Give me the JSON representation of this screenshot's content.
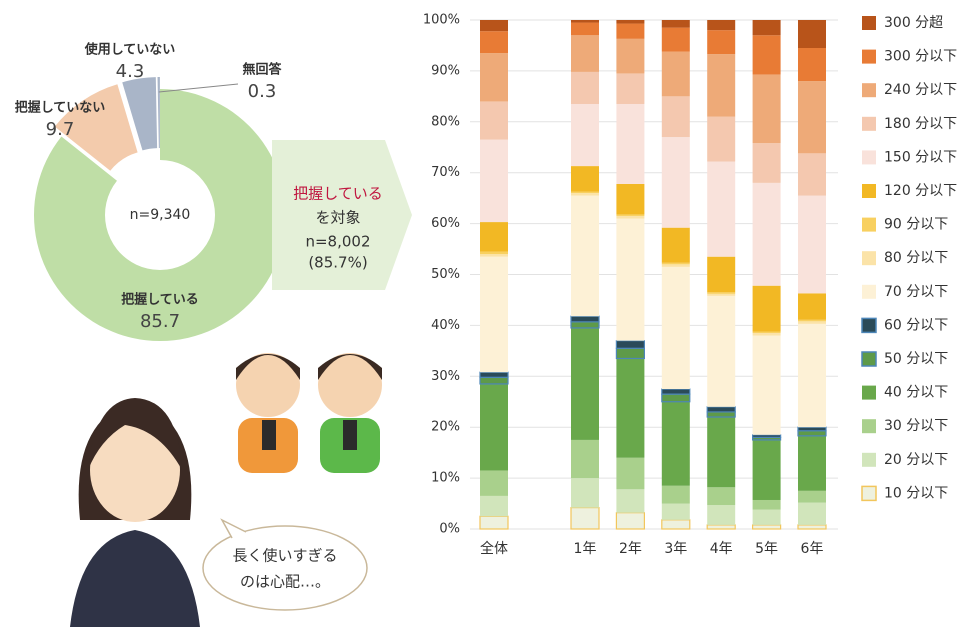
{
  "chart_data": [
    {
      "type": "donut",
      "categories": [
        "把握している",
        "把握していない",
        "使用していない",
        "無回答"
      ],
      "values": [
        85.7,
        9.7,
        4.3,
        0.3
      ],
      "colors": [
        "#bfdea6",
        "#f3cbac",
        "#a9b5c8",
        "#a9b5c8"
      ],
      "center_label": "n=9,340"
    },
    {
      "type": "stacked_bar",
      "categories": [
        "全体",
        "1年",
        "2年",
        "3年",
        "4年",
        "5年",
        "6年"
      ],
      "series": [
        {
          "name": "10 分以下",
          "color": "#eef1de",
          "edgecolor": "#f2c65c",
          "values": [
            2.5,
            4.2,
            3.2,
            1.8,
            0.8,
            0.8,
            0.8
          ]
        },
        {
          "name": "20 分以下",
          "color": "#d1e5bb",
          "values": [
            4,
            5.8,
            4.6,
            3.2,
            3.9,
            3,
            4.4
          ]
        },
        {
          "name": "30 分以下",
          "color": "#a9d08c",
          "values": [
            5,
            7.5,
            6.2,
            3.5,
            3.5,
            1.9,
            2.3
          ]
        },
        {
          "name": "40 分以下",
          "color": "#69a84b",
          "values": [
            17,
            22,
            19.5,
            16.5,
            13.8,
            11.8,
            10.8
          ]
        },
        {
          "name": "50 分以下",
          "color": "#5e9a49",
          "edgecolor": "#4d86b8",
          "values": [
            1.3,
            1.2,
            2,
            1.5,
            1,
            0.5,
            1
          ]
        },
        {
          "name": "60 分以下",
          "color": "#2b4b59",
          "edgecolor": "#4d86b8",
          "values": [
            1,
            1.1,
            1.5,
            1,
            1,
            0.5,
            0.7
          ]
        },
        {
          "name": "70 分以下",
          "color": "#fdf1d6",
          "values": [
            22.7,
            23.7,
            24,
            24,
            21.8,
            19.5,
            20.3
          ]
        },
        {
          "name": "80 分以下",
          "color": "#fbe3a8",
          "values": [
            0.5,
            0.5,
            0.5,
            0.5,
            0.4,
            0.5,
            0.5
          ]
        },
        {
          "name": "90 分以下",
          "color": "#f8d060",
          "values": [
            0.5,
            0.3,
            0.3,
            0.3,
            0.3,
            0.3,
            0.3
          ]
        },
        {
          "name": "120 分以下",
          "color": "#f2b824",
          "values": [
            5.8,
            5,
            6,
            6.9,
            7,
            9,
            5.2
          ]
        },
        {
          "name": "150 分以下",
          "color": "#f9e2db",
          "values": [
            16.2,
            12.2,
            15.7,
            17.8,
            18.7,
            20.2,
            19.2
          ]
        },
        {
          "name": "180 分以下",
          "color": "#f4c8af",
          "values": [
            7.5,
            6.3,
            6,
            8,
            8.8,
            7.8,
            8.3
          ]
        },
        {
          "name": "240 分以下",
          "color": "#eeaa78",
          "values": [
            9.5,
            7.2,
            6.8,
            8.8,
            12.3,
            13.5,
            14.2
          ]
        },
        {
          "name": "300 分以下",
          "color": "#e87b35",
          "values": [
            4.3,
            2.5,
            3,
            4.7,
            4.7,
            7.7,
            6.5
          ]
        },
        {
          "name": "300 分超",
          "color": "#b8541a",
          "values": [
            2.2,
            0.5,
            0.7,
            1.5,
            2,
            3,
            5.5
          ]
        }
      ],
      "ylim": [
        0,
        100
      ],
      "yticks": [
        {
          "value": 0,
          "label": "0%"
        },
        {
          "value": 10,
          "label": "10%"
        },
        {
          "value": 20,
          "label": "20%"
        },
        {
          "value": 30,
          "label": "30%"
        },
        {
          "value": 40,
          "label": "40%"
        },
        {
          "value": 50,
          "label": "50%"
        },
        {
          "value": 60,
          "label": "60%"
        },
        {
          "value": 70,
          "label": "70%"
        },
        {
          "value": 80,
          "label": "80%"
        },
        {
          "value": 90,
          "label": "90%"
        },
        {
          "value": 100,
          "label": "100%"
        }
      ],
      "grid": true,
      "legend": "right"
    }
  ],
  "callout": {
    "highlight": "把握している",
    "lines": [
      "を対象",
      "n=8,002",
      "(85.7%)"
    ]
  },
  "speech_bubble": {
    "lines": [
      "長く使いすぎる",
      "のは心配…。"
    ]
  }
}
